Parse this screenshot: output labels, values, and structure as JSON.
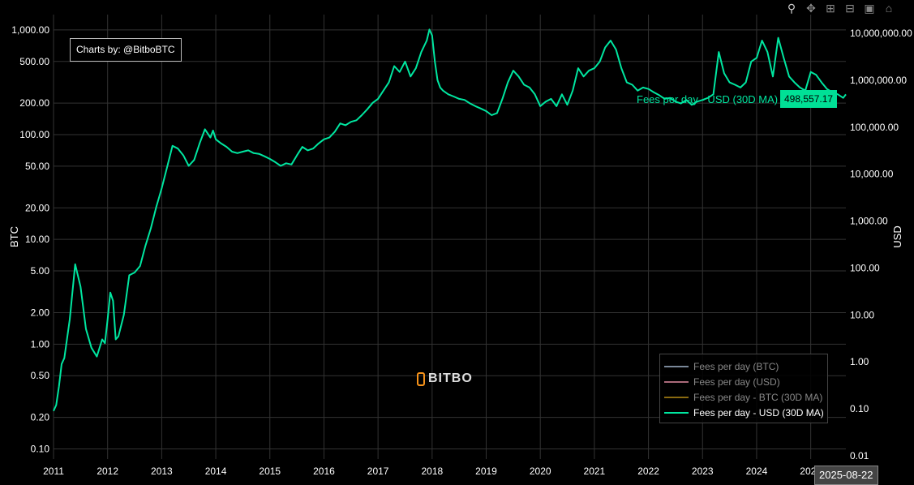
{
  "toolbar": {
    "icons": [
      "zoom-icon",
      "pan-icon",
      "zoom-in-icon",
      "zoom-out-icon",
      "autoscale-icon",
      "home-icon"
    ]
  },
  "credit": "Charts by: @BitboBTC",
  "logo_text": "BITBO",
  "hover": {
    "label": "Fees per day - USD (30D MA)",
    "value": "498,557.17",
    "date": "2025-08-22"
  },
  "legend": [
    {
      "label": "Fees per day (BTC)",
      "color": "#7a8899",
      "visible": false
    },
    {
      "label": "Fees per day (USD)",
      "color": "#aa6a7a",
      "visible": false
    },
    {
      "label": "Fees per day - BTC (30D MA)",
      "color": "#8a6a10",
      "visible": false
    },
    {
      "label": "Fees per day - USD (30D MA)",
      "color": "#00e6a0",
      "visible": true
    }
  ],
  "chart_data": {
    "type": "line",
    "ylabel": "BTC",
    "y2label": "USD",
    "yscale": "log",
    "ylim": [
      0.08,
      1400
    ],
    "y2lim": [
      0.0085,
      25000000
    ],
    "y_ticks": [
      {
        "v": 0.1,
        "label": "0.10"
      },
      {
        "v": 0.2,
        "label": "0.20"
      },
      {
        "v": 0.5,
        "label": "0.50"
      },
      {
        "v": 1,
        "label": "1.00"
      },
      {
        "v": 2,
        "label": "2.00"
      },
      {
        "v": 5,
        "label": "5.00"
      },
      {
        "v": 10,
        "label": "10.00"
      },
      {
        "v": 20,
        "label": "20.00"
      },
      {
        "v": 50,
        "label": "50.00"
      },
      {
        "v": 100,
        "label": "100.00"
      },
      {
        "v": 200,
        "label": "200.00"
      },
      {
        "v": 500,
        "label": "500.00"
      },
      {
        "v": 1000,
        "label": "1,000.00"
      }
    ],
    "y2_ticks": [
      {
        "v": 0.01,
        "label": "0.01"
      },
      {
        "v": 0.1,
        "label": "0.10"
      },
      {
        "v": 1,
        "label": "1.00"
      },
      {
        "v": 10,
        "label": "10.00"
      },
      {
        "v": 100,
        "label": "100.00"
      },
      {
        "v": 1000,
        "label": "1,000.00"
      },
      {
        "v": 10000,
        "label": "10,000.00"
      },
      {
        "v": 100000,
        "label": "100,000.00"
      },
      {
        "v": 1000000,
        "label": "1,000,000.00"
      },
      {
        "v": 10000000,
        "label": "10,000,000.00"
      }
    ],
    "x_ticks": [
      "2011",
      "2012",
      "2013",
      "2014",
      "2015",
      "2016",
      "2017",
      "2018",
      "2019",
      "2020",
      "2021",
      "2022",
      "2023",
      "2024",
      "2025"
    ],
    "xlim": [
      2011.0,
      2025.65
    ],
    "grid": true,
    "legend_position": "bottom-right",
    "series": [
      {
        "name": "Fees per day - USD (30D MA)",
        "axis": "y2",
        "color": "#00e6a0",
        "x": [
          2011.0,
          2011.05,
          2011.1,
          2011.15,
          2011.2,
          2011.3,
          2011.4,
          2011.5,
          2011.6,
          2011.7,
          2011.8,
          2011.9,
          2011.95,
          2012.0,
          2012.05,
          2012.1,
          2012.15,
          2012.2,
          2012.3,
          2012.4,
          2012.5,
          2012.6,
          2012.7,
          2012.8,
          2012.9,
          2013.0,
          2013.1,
          2013.2,
          2013.3,
          2013.4,
          2013.5,
          2013.6,
          2013.7,
          2013.8,
          2013.9,
          2013.95,
          2014.0,
          2014.1,
          2014.2,
          2014.3,
          2014.4,
          2014.5,
          2014.6,
          2014.7,
          2014.8,
          2014.9,
          2015.0,
          2015.1,
          2015.2,
          2015.3,
          2015.4,
          2015.5,
          2015.6,
          2015.7,
          2015.8,
          2015.9,
          2016.0,
          2016.1,
          2016.2,
          2016.3,
          2016.4,
          2016.5,
          2016.6,
          2016.7,
          2016.8,
          2016.9,
          2017.0,
          2017.1,
          2017.2,
          2017.3,
          2017.4,
          2017.5,
          2017.6,
          2017.7,
          2017.8,
          2017.9,
          2017.95,
          2018.0,
          2018.05,
          2018.1,
          2018.15,
          2018.2,
          2018.3,
          2018.4,
          2018.5,
          2018.6,
          2018.7,
          2018.8,
          2018.9,
          2019.0,
          2019.1,
          2019.2,
          2019.3,
          2019.4,
          2019.5,
          2019.6,
          2019.7,
          2019.8,
          2019.9,
          2020.0,
          2020.1,
          2020.2,
          2020.3,
          2020.4,
          2020.5,
          2020.6,
          2020.7,
          2020.8,
          2020.9,
          2021.0,
          2021.1,
          2021.2,
          2021.3,
          2021.4,
          2021.5,
          2021.6,
          2021.7,
          2021.8,
          2021.9,
          2022.0,
          2022.1,
          2022.2,
          2022.3,
          2022.4,
          2022.5,
          2022.6,
          2022.7,
          2022.8,
          2022.9,
          2023.0,
          2023.1,
          2023.2,
          2023.3,
          2023.4,
          2023.5,
          2023.6,
          2023.7,
          2023.8,
          2023.9,
          2024.0,
          2024.1,
          2024.2,
          2024.3,
          2024.4,
          2024.5,
          2024.6,
          2024.7,
          2024.8,
          2024.9,
          2025.0,
          2025.1,
          2025.2,
          2025.3,
          2025.4,
          2025.5,
          2025.6,
          2025.65
        ],
        "y": [
          0.09,
          0.12,
          0.3,
          0.9,
          1.2,
          8,
          120,
          40,
          5,
          2,
          1.3,
          3,
          2.5,
          8,
          30,
          20,
          3,
          3.5,
          10,
          70,
          80,
          110,
          300,
          700,
          2000,
          5000,
          14000,
          40000,
          35000,
          25000,
          15000,
          20000,
          45000,
          90000,
          60000,
          85000,
          55000,
          45000,
          38000,
          30000,
          28000,
          30000,
          32000,
          28000,
          27000,
          24000,
          21000,
          18000,
          15000,
          17000,
          16000,
          25000,
          38000,
          32000,
          35000,
          45000,
          55000,
          60000,
          80000,
          120000,
          110000,
          130000,
          140000,
          180000,
          240000,
          330000,
          400000,
          600000,
          900000,
          2000000,
          1500000,
          2500000,
          1200000,
          1800000,
          4000000,
          7000000,
          12000000,
          9000000,
          2500000,
          1000000,
          700000,
          600000,
          500000,
          450000,
          400000,
          380000,
          320000,
          280000,
          250000,
          220000,
          180000,
          200000,
          400000,
          900000,
          1600000,
          1200000,
          800000,
          700000,
          500000,
          280000,
          350000,
          400000,
          280000,
          500000,
          300000,
          600000,
          1800000,
          1200000,
          1600000,
          1800000,
          2500000,
          5000000,
          7000000,
          4500000,
          1800000,
          900000,
          800000,
          600000,
          700000,
          650000,
          550000,
          480000,
          400000,
          420000,
          350000,
          320000,
          380000,
          300000,
          350000,
          380000,
          420000,
          500000,
          4000000,
          1400000,
          900000,
          800000,
          700000,
          900000,
          2500000,
          3000000,
          7000000,
          4000000,
          1200000,
          8000000,
          3000000,
          1200000,
          900000,
          700000,
          600000,
          1500000,
          1300000,
          900000,
          650000,
          550000,
          500000,
          420000,
          498557
        ]
      }
    ]
  }
}
